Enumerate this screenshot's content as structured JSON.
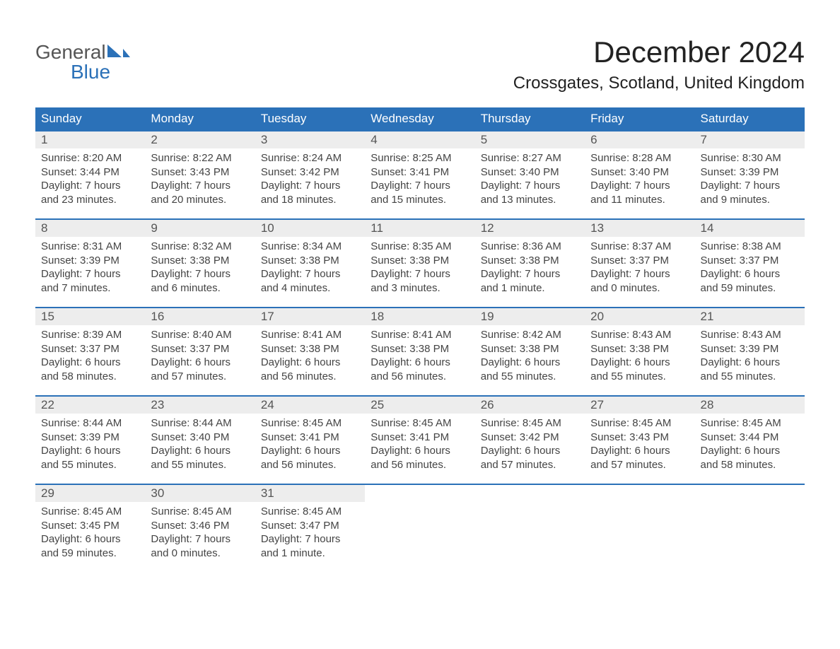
{
  "logo": {
    "word1": "General",
    "word2": "Blue",
    "color": "#2b71b8"
  },
  "title": {
    "month": "December 2024",
    "location": "Crossgates, Scotland, United Kingdom"
  },
  "colors": {
    "header_bg": "#2b71b8",
    "header_text": "#ffffff",
    "daynum_bg": "#ededed",
    "daynum_text": "#555555",
    "row_border": "#2b71b8",
    "body_text": "#444444",
    "title_text": "#222222",
    "page_bg": "#ffffff"
  },
  "day_headers": [
    "Sunday",
    "Monday",
    "Tuesday",
    "Wednesday",
    "Thursday",
    "Friday",
    "Saturday"
  ],
  "weeks": [
    [
      {
        "n": "1",
        "sr": "Sunrise: 8:20 AM",
        "ss": "Sunset: 3:44 PM",
        "d1": "Daylight: 7 hours",
        "d2": "and 23 minutes."
      },
      {
        "n": "2",
        "sr": "Sunrise: 8:22 AM",
        "ss": "Sunset: 3:43 PM",
        "d1": "Daylight: 7 hours",
        "d2": "and 20 minutes."
      },
      {
        "n": "3",
        "sr": "Sunrise: 8:24 AM",
        "ss": "Sunset: 3:42 PM",
        "d1": "Daylight: 7 hours",
        "d2": "and 18 minutes."
      },
      {
        "n": "4",
        "sr": "Sunrise: 8:25 AM",
        "ss": "Sunset: 3:41 PM",
        "d1": "Daylight: 7 hours",
        "d2": "and 15 minutes."
      },
      {
        "n": "5",
        "sr": "Sunrise: 8:27 AM",
        "ss": "Sunset: 3:40 PM",
        "d1": "Daylight: 7 hours",
        "d2": "and 13 minutes."
      },
      {
        "n": "6",
        "sr": "Sunrise: 8:28 AM",
        "ss": "Sunset: 3:40 PM",
        "d1": "Daylight: 7 hours",
        "d2": "and 11 minutes."
      },
      {
        "n": "7",
        "sr": "Sunrise: 8:30 AM",
        "ss": "Sunset: 3:39 PM",
        "d1": "Daylight: 7 hours",
        "d2": "and 9 minutes."
      }
    ],
    [
      {
        "n": "8",
        "sr": "Sunrise: 8:31 AM",
        "ss": "Sunset: 3:39 PM",
        "d1": "Daylight: 7 hours",
        "d2": "and 7 minutes."
      },
      {
        "n": "9",
        "sr": "Sunrise: 8:32 AM",
        "ss": "Sunset: 3:38 PM",
        "d1": "Daylight: 7 hours",
        "d2": "and 6 minutes."
      },
      {
        "n": "10",
        "sr": "Sunrise: 8:34 AM",
        "ss": "Sunset: 3:38 PM",
        "d1": "Daylight: 7 hours",
        "d2": "and 4 minutes."
      },
      {
        "n": "11",
        "sr": "Sunrise: 8:35 AM",
        "ss": "Sunset: 3:38 PM",
        "d1": "Daylight: 7 hours",
        "d2": "and 3 minutes."
      },
      {
        "n": "12",
        "sr": "Sunrise: 8:36 AM",
        "ss": "Sunset: 3:38 PM",
        "d1": "Daylight: 7 hours",
        "d2": "and 1 minute."
      },
      {
        "n": "13",
        "sr": "Sunrise: 8:37 AM",
        "ss": "Sunset: 3:37 PM",
        "d1": "Daylight: 7 hours",
        "d2": "and 0 minutes."
      },
      {
        "n": "14",
        "sr": "Sunrise: 8:38 AM",
        "ss": "Sunset: 3:37 PM",
        "d1": "Daylight: 6 hours",
        "d2": "and 59 minutes."
      }
    ],
    [
      {
        "n": "15",
        "sr": "Sunrise: 8:39 AM",
        "ss": "Sunset: 3:37 PM",
        "d1": "Daylight: 6 hours",
        "d2": "and 58 minutes."
      },
      {
        "n": "16",
        "sr": "Sunrise: 8:40 AM",
        "ss": "Sunset: 3:37 PM",
        "d1": "Daylight: 6 hours",
        "d2": "and 57 minutes."
      },
      {
        "n": "17",
        "sr": "Sunrise: 8:41 AM",
        "ss": "Sunset: 3:38 PM",
        "d1": "Daylight: 6 hours",
        "d2": "and 56 minutes."
      },
      {
        "n": "18",
        "sr": "Sunrise: 8:41 AM",
        "ss": "Sunset: 3:38 PM",
        "d1": "Daylight: 6 hours",
        "d2": "and 56 minutes."
      },
      {
        "n": "19",
        "sr": "Sunrise: 8:42 AM",
        "ss": "Sunset: 3:38 PM",
        "d1": "Daylight: 6 hours",
        "d2": "and 55 minutes."
      },
      {
        "n": "20",
        "sr": "Sunrise: 8:43 AM",
        "ss": "Sunset: 3:38 PM",
        "d1": "Daylight: 6 hours",
        "d2": "and 55 minutes."
      },
      {
        "n": "21",
        "sr": "Sunrise: 8:43 AM",
        "ss": "Sunset: 3:39 PM",
        "d1": "Daylight: 6 hours",
        "d2": "and 55 minutes."
      }
    ],
    [
      {
        "n": "22",
        "sr": "Sunrise: 8:44 AM",
        "ss": "Sunset: 3:39 PM",
        "d1": "Daylight: 6 hours",
        "d2": "and 55 minutes."
      },
      {
        "n": "23",
        "sr": "Sunrise: 8:44 AM",
        "ss": "Sunset: 3:40 PM",
        "d1": "Daylight: 6 hours",
        "d2": "and 55 minutes."
      },
      {
        "n": "24",
        "sr": "Sunrise: 8:45 AM",
        "ss": "Sunset: 3:41 PM",
        "d1": "Daylight: 6 hours",
        "d2": "and 56 minutes."
      },
      {
        "n": "25",
        "sr": "Sunrise: 8:45 AM",
        "ss": "Sunset: 3:41 PM",
        "d1": "Daylight: 6 hours",
        "d2": "and 56 minutes."
      },
      {
        "n": "26",
        "sr": "Sunrise: 8:45 AM",
        "ss": "Sunset: 3:42 PM",
        "d1": "Daylight: 6 hours",
        "d2": "and 57 minutes."
      },
      {
        "n": "27",
        "sr": "Sunrise: 8:45 AM",
        "ss": "Sunset: 3:43 PM",
        "d1": "Daylight: 6 hours",
        "d2": "and 57 minutes."
      },
      {
        "n": "28",
        "sr": "Sunrise: 8:45 AM",
        "ss": "Sunset: 3:44 PM",
        "d1": "Daylight: 6 hours",
        "d2": "and 58 minutes."
      }
    ],
    [
      {
        "n": "29",
        "sr": "Sunrise: 8:45 AM",
        "ss": "Sunset: 3:45 PM",
        "d1": "Daylight: 6 hours",
        "d2": "and 59 minutes."
      },
      {
        "n": "30",
        "sr": "Sunrise: 8:45 AM",
        "ss": "Sunset: 3:46 PM",
        "d1": "Daylight: 7 hours",
        "d2": "and 0 minutes."
      },
      {
        "n": "31",
        "sr": "Sunrise: 8:45 AM",
        "ss": "Sunset: 3:47 PM",
        "d1": "Daylight: 7 hours",
        "d2": "and 1 minute."
      },
      null,
      null,
      null,
      null
    ]
  ]
}
